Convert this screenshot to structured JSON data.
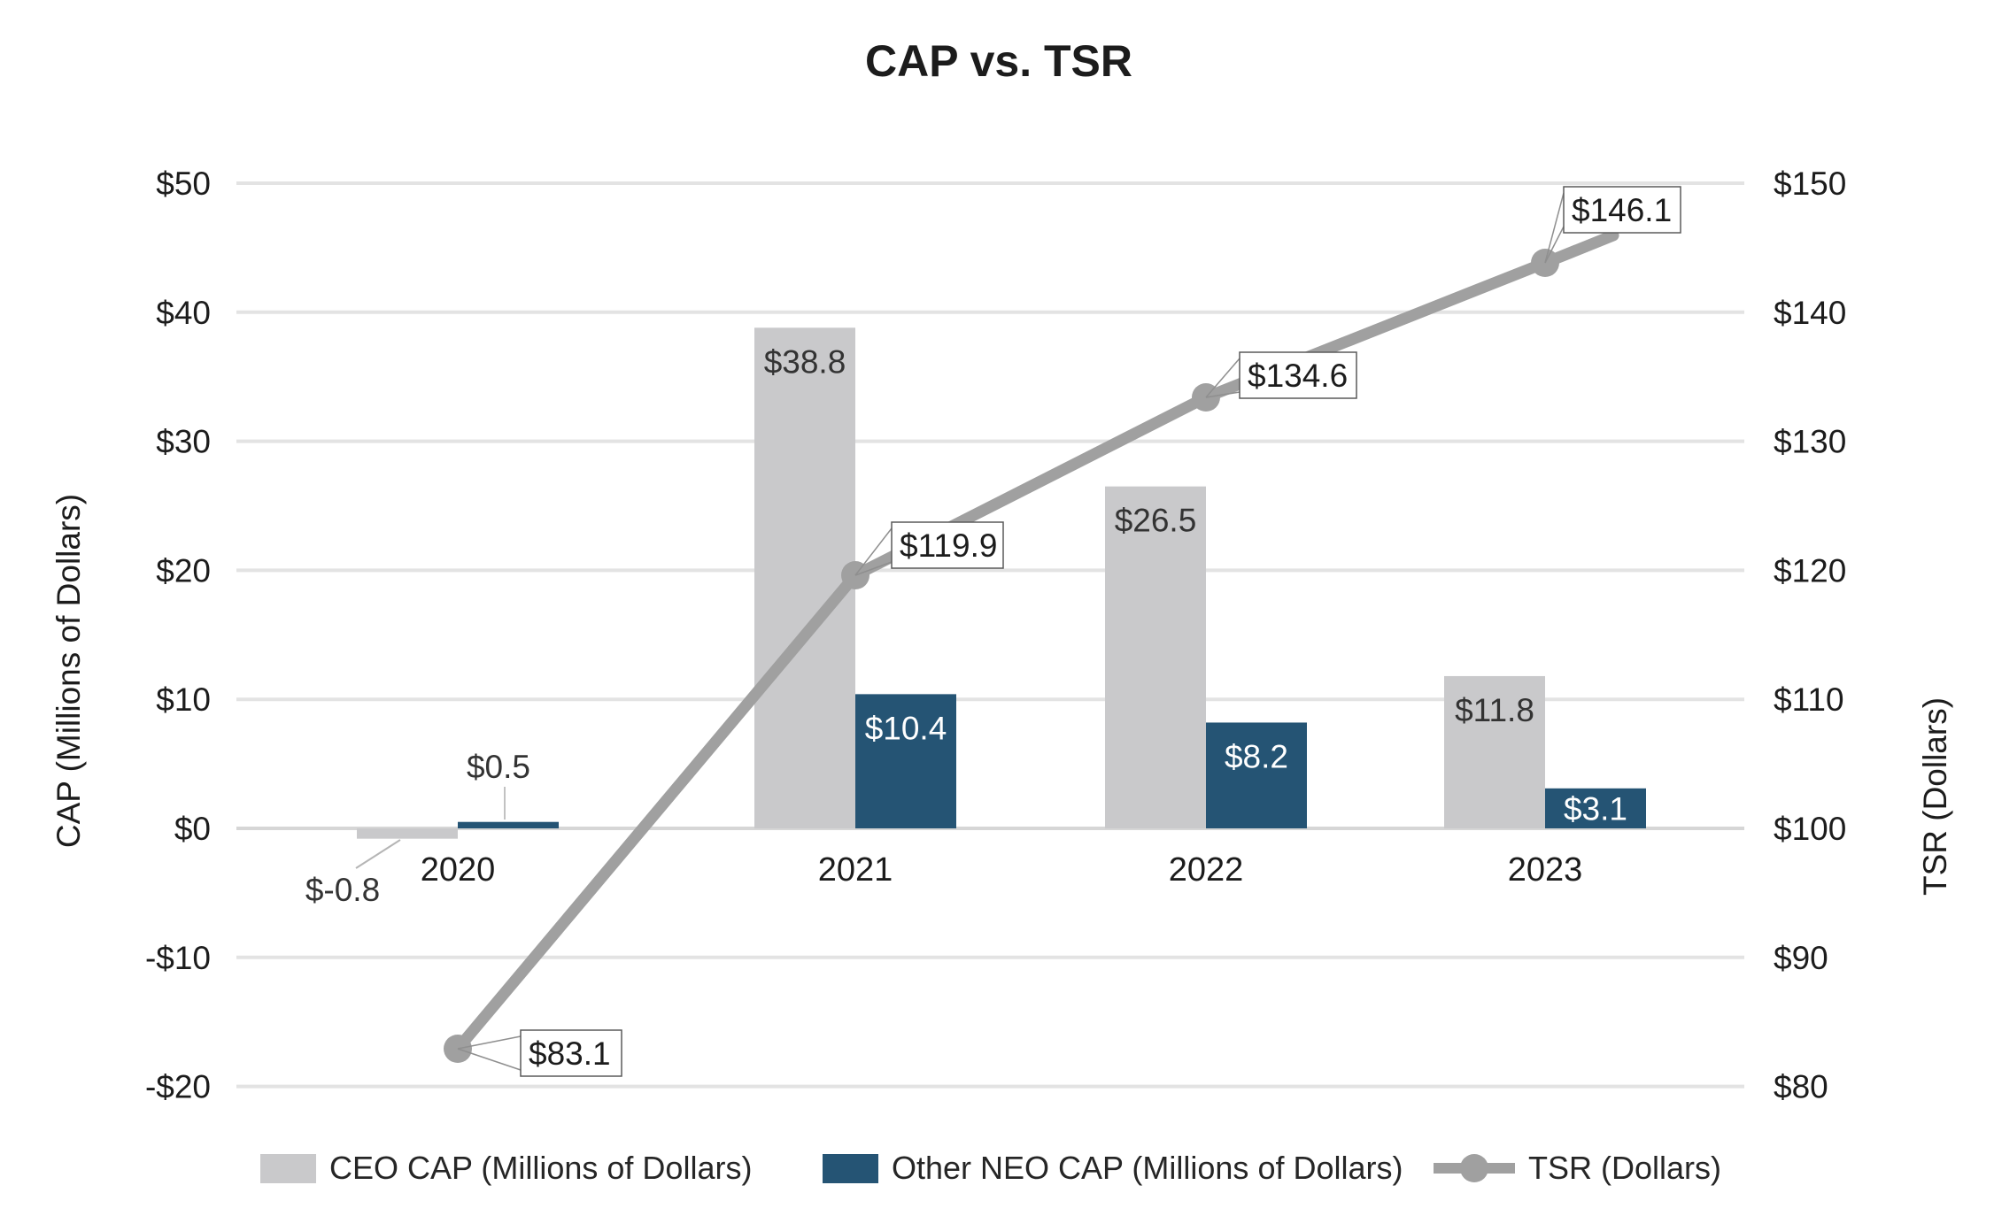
{
  "chart_data": {
    "type": "combo",
    "title": "CAP vs. TSR",
    "categories": [
      "2020",
      "2021",
      "2022",
      "2023"
    ],
    "series": [
      {
        "name": "CEO CAP (Millions of Dollars)",
        "type": "bar",
        "axis": "left",
        "color": "#c9c9cb",
        "values": [
          -0.8,
          38.8,
          26.5,
          11.8
        ],
        "labels": [
          "$-0.8",
          "$38.8",
          "$26.5",
          "$11.8"
        ]
      },
      {
        "name": "Other NEO CAP (Millions of Dollars)",
        "type": "bar",
        "axis": "left",
        "color": "#255474",
        "values": [
          0.5,
          10.4,
          8.2,
          3.1
        ],
        "labels": [
          "$0.5",
          "$10.4",
          "$8.2",
          "$3.1"
        ]
      },
      {
        "name": "TSR (Dollars)",
        "type": "line",
        "axis": "right",
        "color": "#a0a0a0",
        "values": [
          83.1,
          119.9,
          134.6,
          146.1
        ],
        "labels": [
          "$83.1",
          "$119.9",
          "$134.6",
          "$146.1"
        ]
      }
    ],
    "left_axis": {
      "label": "CAP (Millions of Dollars)",
      "min": -20,
      "max": 50,
      "step": 10,
      "tick_labels": [
        "$50",
        "$40",
        "$30",
        "$20",
        "$10",
        "$0",
        "-$10",
        "-$20"
      ]
    },
    "right_axis": {
      "label": "TSR (Dollars)",
      "min": 80,
      "max": 150,
      "step": 10,
      "tick_labels": [
        "$150",
        "$140",
        "$130",
        "$120",
        "$110",
        "$100",
        "$90",
        "$80"
      ]
    },
    "grid": true,
    "legend_position": "bottom"
  }
}
